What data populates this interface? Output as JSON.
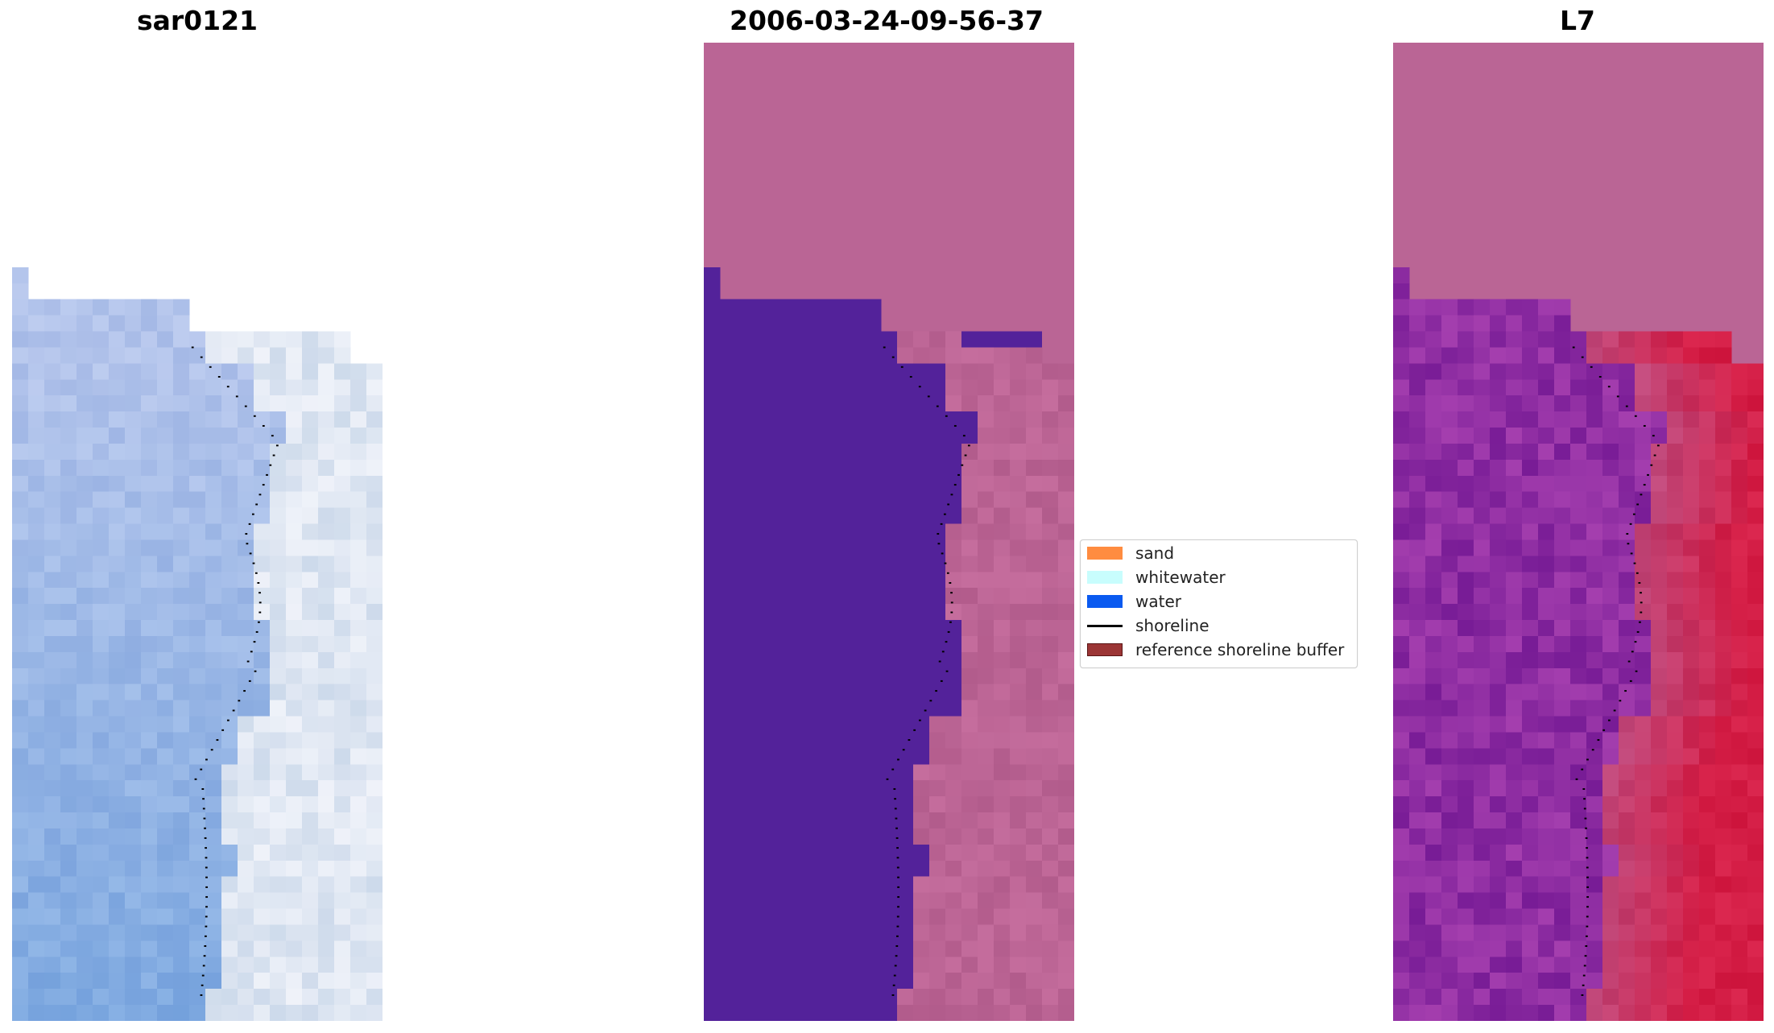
{
  "panels": [
    {
      "title": "sar0121"
    },
    {
      "title": "2006-03-24-09-56-37"
    },
    {
      "title": "L7"
    }
  ],
  "legend": {
    "entries": [
      {
        "label": "sand",
        "kind": "patch",
        "color": "#ff8c40"
      },
      {
        "label": "whitewater",
        "kind": "patch",
        "color": "#c8fdfd"
      },
      {
        "label": "water",
        "kind": "patch",
        "color": "#0a5af0"
      },
      {
        "label": "shoreline",
        "kind": "line",
        "color": "#000000"
      },
      {
        "label": "reference shoreline buffer",
        "kind": "patch",
        "color": "#9b3535"
      }
    ]
  },
  "colors": {
    "background": "#ffffff",
    "rgb_base": "#c4cdef",
    "class_water": "#53229a",
    "class_sand": "#ba6595",
    "l7_overlay_land": "#c21e49",
    "l7_overlay_water": "#7a1f9e",
    "shoreline_points": "#000000"
  }
}
